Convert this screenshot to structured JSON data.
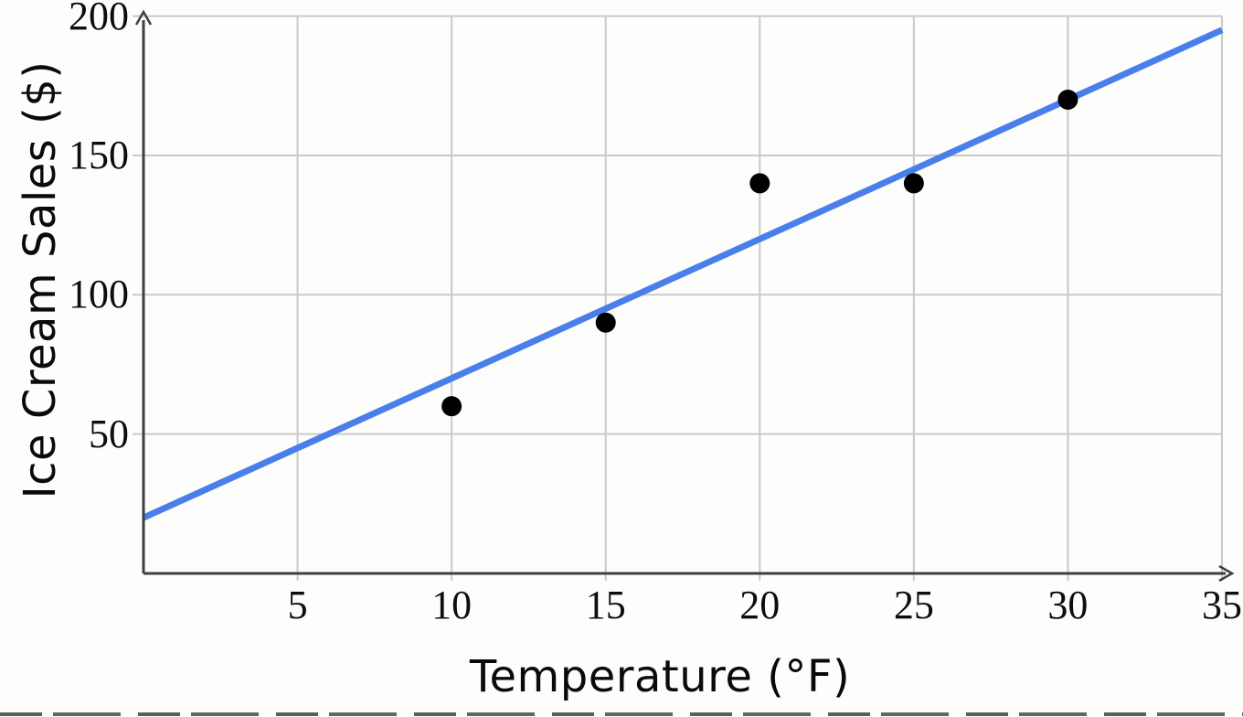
{
  "chart_data": {
    "type": "scatter",
    "title": "",
    "xlabel": "Temperature (°F)",
    "ylabel": "Ice Cream Sales ($)",
    "xlim": [
      0,
      35
    ],
    "ylim": [
      0,
      200
    ],
    "x_ticks": [
      5,
      10,
      15,
      20,
      25,
      30,
      35
    ],
    "y_ticks": [
      50,
      100,
      150,
      200
    ],
    "grid": true,
    "points": [
      {
        "x": 10,
        "y": 60
      },
      {
        "x": 15,
        "y": 90
      },
      {
        "x": 20,
        "y": 140
      },
      {
        "x": 25,
        "y": 140
      },
      {
        "x": 30,
        "y": 170
      }
    ],
    "trend_line": {
      "slope": 5,
      "intercept": 20,
      "x_start": 0,
      "x_end": 35
    },
    "colors": {
      "trend_line": "#4A7EEA",
      "points": "#000000",
      "grid": "#C9C9C9",
      "axis": "#3F3F3F",
      "text": "#0D0D0D"
    }
  }
}
